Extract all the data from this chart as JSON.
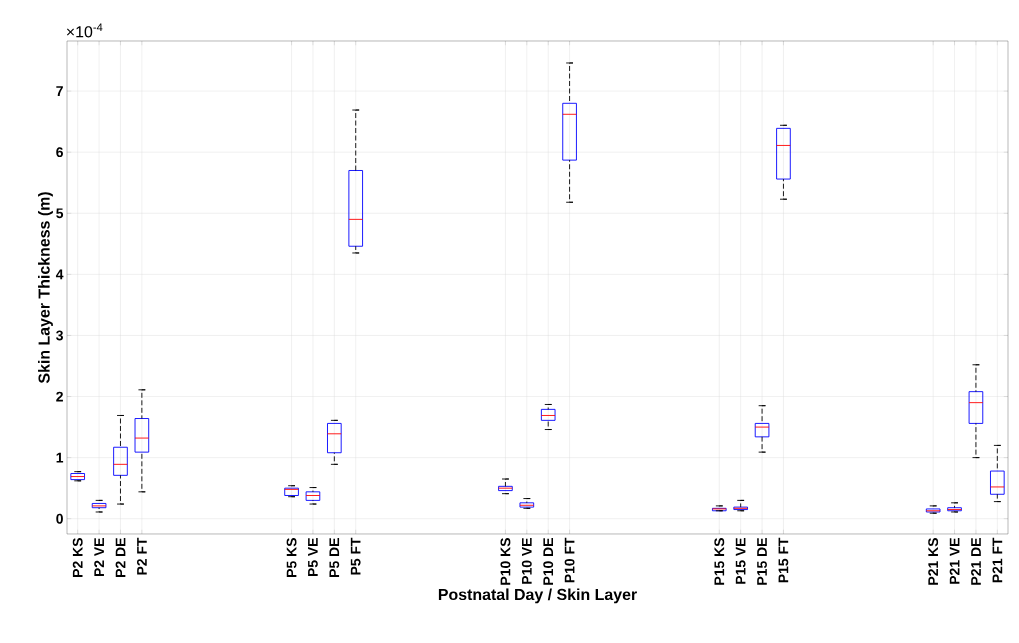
{
  "chart_data": {
    "type": "box",
    "xlabel": "Postnatal Day / Skin Layer",
    "ylabel": "Skin Layer Thickness (m)",
    "annotations": [
      "×10$^{-4}$"
    ],
    "categories": [
      "P2 KS",
      "P2 VE",
      "P2 DE",
      "P2 FT",
      null,
      null,
      null,
      null,
      null,
      null,
      "P5 KS",
      "P5 VE",
      "P5 DE",
      "P5 FT",
      null,
      null,
      null,
      null,
      null,
      null,
      "P10 KS",
      "P10 VE",
      "P10 DE",
      "P10 FT",
      null,
      null,
      null,
      null,
      null,
      null,
      "P15 KS",
      "P15 VE",
      "P15 DE",
      "P15 FT",
      null,
      null,
      null,
      null,
      null,
      null,
      "P21 KS",
      "P21 VE",
      "P21 DE",
      "P21 FT"
    ],
    "series": [
      {
        "color": "#0000ff",
        "boxes": [
          {
            "low": 0.62,
            "q1": 0.64,
            "median": 0.69,
            "q3": 0.74,
            "high": 0.77
          },
          {
            "low": 0.11,
            "q1": 0.18,
            "median": 0.21,
            "q3": 0.25,
            "high": 0.3
          },
          {
            "low": 0.24,
            "q1": 0.71,
            "median": 0.89,
            "q3": 1.17,
            "high": 1.69
          },
          {
            "low": 0.44,
            "q1": 1.09,
            "median": 1.32,
            "q3": 1.64,
            "high": 2.11
          },
          null,
          null,
          null,
          null,
          null,
          null,
          {
            "low": 0.36,
            "q1": 0.38,
            "median": 0.48,
            "q3": 0.5,
            "high": 0.54
          },
          {
            "low": 0.24,
            "q1": 0.3,
            "median": 0.38,
            "q3": 0.44,
            "high": 0.51
          },
          {
            "low": 0.89,
            "q1": 1.08,
            "median": 1.39,
            "q3": 1.56,
            "high": 1.61
          },
          {
            "low": 4.35,
            "q1": 4.46,
            "median": 4.9,
            "q3": 5.7,
            "high": 6.69
          },
          null,
          null,
          null,
          null,
          null,
          null,
          {
            "low": 0.41,
            "q1": 0.46,
            "median": 0.5,
            "q3": 0.53,
            "high": 0.65
          },
          {
            "low": 0.17,
            "q1": 0.19,
            "median": 0.22,
            "q3": 0.26,
            "high": 0.33
          },
          {
            "low": 1.46,
            "q1": 1.61,
            "median": 1.69,
            "q3": 1.79,
            "high": 1.87
          },
          {
            "low": 5.18,
            "q1": 5.87,
            "median": 6.62,
            "q3": 6.8,
            "high": 7.46
          },
          null,
          null,
          null,
          null,
          null,
          null,
          {
            "low": 0.13,
            "q1": 0.13,
            "median": 0.16,
            "q3": 0.17,
            "high": 0.21
          },
          {
            "low": 0.13,
            "q1": 0.15,
            "median": 0.17,
            "q3": 0.19,
            "high": 0.3
          },
          {
            "low": 1.09,
            "q1": 1.34,
            "median": 1.5,
            "q3": 1.56,
            "high": 1.85
          },
          {
            "low": 5.23,
            "q1": 5.56,
            "median": 6.11,
            "q3": 6.39,
            "high": 6.44
          },
          null,
          null,
          null,
          null,
          null,
          null,
          {
            "low": 0.09,
            "q1": 0.11,
            "median": 0.13,
            "q3": 0.16,
            "high": 0.21
          },
          {
            "low": 0.11,
            "q1": 0.13,
            "median": 0.15,
            "q3": 0.18,
            "high": 0.26
          },
          {
            "low": 1.0,
            "q1": 1.56,
            "median": 1.9,
            "q3": 2.08,
            "high": 2.52
          },
          {
            "low": 0.28,
            "q1": 0.4,
            "median": 0.52,
            "q3": 0.78,
            "high": 1.2
          }
        ]
      }
    ],
    "ylim": [
      -0.25,
      7.82
    ],
    "yticks": [
      0,
      1,
      2,
      3,
      4,
      5,
      6,
      7
    ],
    "grid": true
  }
}
